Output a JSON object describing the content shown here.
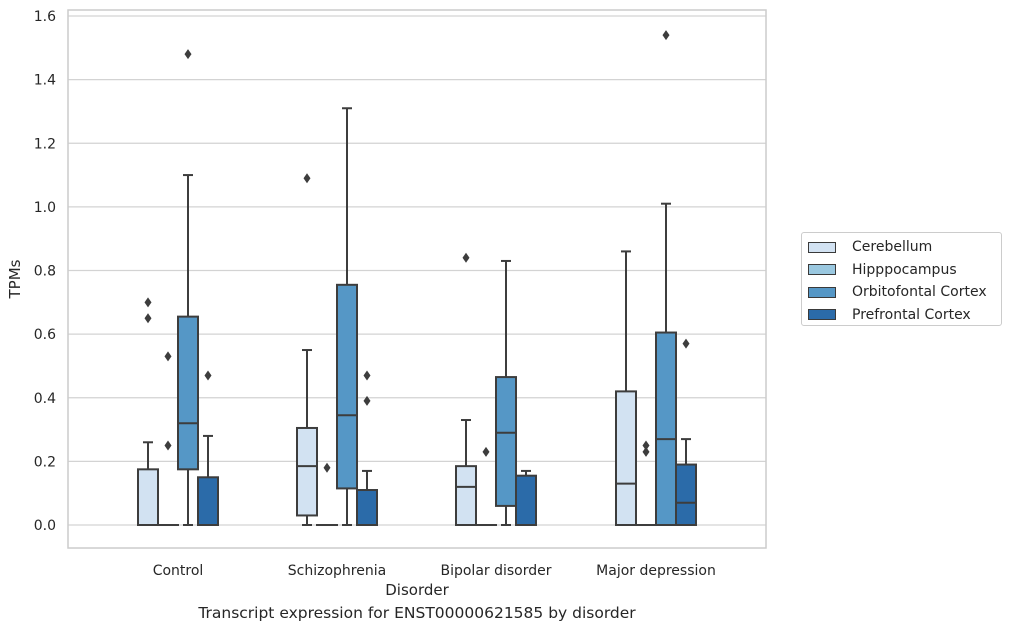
{
  "chart_data": {
    "type": "box",
    "title": "",
    "caption": "Transcript expression for ENST00000621585 by disorder",
    "xlabel": "Disorder",
    "ylabel": "TPMs",
    "ylim": [
      -0.075,
      1.62
    ],
    "yticks": [
      "0.0",
      "0.2",
      "0.4",
      "0.6",
      "0.8",
      "1.0",
      "1.2",
      "1.4",
      "1.6"
    ],
    "categories": [
      "Control",
      "Schizophrenia",
      "Bipolar disorder",
      "Major depression"
    ],
    "grid": "horizontal",
    "legend_position": "right",
    "series": [
      {
        "name": "Cerebellum",
        "color": "#d2e2f2",
        "boxes": [
          {
            "whislo": 0.0,
            "q1": 0.0,
            "med": 0.0,
            "q3": 0.175,
            "whishi": 0.26,
            "fliers": [
              0.65,
              0.7
            ]
          },
          {
            "whislo": 0.0,
            "q1": 0.03,
            "med": 0.185,
            "q3": 0.305,
            "whishi": 0.55,
            "fliers": [
              1.09
            ]
          },
          {
            "whislo": 0.0,
            "q1": 0.0,
            "med": 0.12,
            "q3": 0.185,
            "whishi": 0.33,
            "fliers": [
              0.84
            ]
          },
          {
            "whislo": 0.0,
            "q1": 0.0,
            "med": 0.13,
            "q3": 0.42,
            "whishi": 0.86,
            "fliers": []
          }
        ]
      },
      {
        "name": "Hipppocampus",
        "color": "#9ac8e0",
        "boxes": [
          {
            "whislo": 0.0,
            "q1": 0.0,
            "med": 0.0,
            "q3": 0.0,
            "whishi": 0.0,
            "fliers": [
              0.25,
              0.53
            ]
          },
          {
            "whislo": 0.0,
            "q1": 0.0,
            "med": 0.0,
            "q3": 0.0,
            "whishi": 0.0,
            "fliers": [
              0.18
            ]
          },
          {
            "whislo": 0.0,
            "q1": 0.0,
            "med": 0.0,
            "q3": 0.0,
            "whishi": 0.0,
            "fliers": [
              0.23
            ]
          },
          {
            "whislo": 0.0,
            "q1": 0.0,
            "med": 0.0,
            "q3": 0.0,
            "whishi": 0.0,
            "fliers": [
              0.23,
              0.25
            ]
          }
        ]
      },
      {
        "name": "Orbitofontal Cortex",
        "color": "#5597c6",
        "boxes": [
          {
            "whislo": 0.0,
            "q1": 0.175,
            "med": 0.32,
            "q3": 0.655,
            "whishi": 1.1,
            "fliers": [
              1.48
            ]
          },
          {
            "whislo": 0.0,
            "q1": 0.115,
            "med": 0.345,
            "q3": 0.755,
            "whishi": 1.31,
            "fliers": []
          },
          {
            "whislo": 0.0,
            "q1": 0.06,
            "med": 0.29,
            "q3": 0.465,
            "whishi": 0.83,
            "fliers": []
          },
          {
            "whislo": 0.0,
            "q1": 0.0,
            "med": 0.27,
            "q3": 0.605,
            "whishi": 1.01,
            "fliers": [
              1.54
            ]
          }
        ]
      },
      {
        "name": "Prefrontal Cortex",
        "color": "#2b6ba9",
        "boxes": [
          {
            "whislo": 0.0,
            "q1": 0.0,
            "med": 0.0,
            "q3": 0.15,
            "whishi": 0.28,
            "fliers": [
              0.47
            ]
          },
          {
            "whislo": 0.0,
            "q1": 0.0,
            "med": 0.0,
            "q3": 0.11,
            "whishi": 0.17,
            "fliers": [
              0.39,
              0.47
            ]
          },
          {
            "whislo": 0.0,
            "q1": 0.0,
            "med": 0.0,
            "q3": 0.155,
            "whishi": 0.17,
            "fliers": []
          },
          {
            "whislo": 0.0,
            "q1": 0.0,
            "med": 0.07,
            "q3": 0.19,
            "whishi": 0.27,
            "fliers": [
              0.57
            ]
          }
        ]
      }
    ]
  }
}
